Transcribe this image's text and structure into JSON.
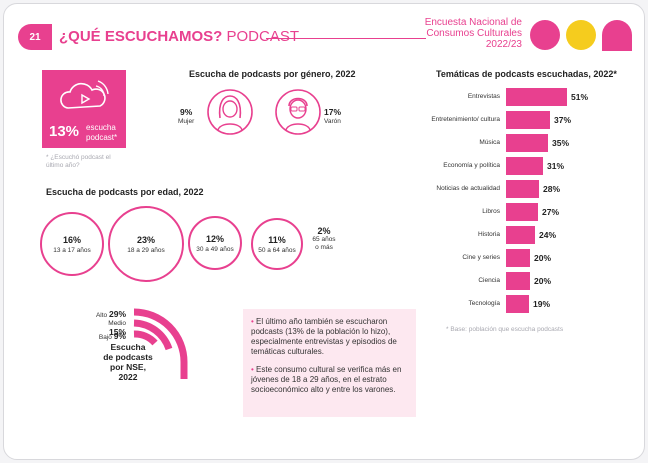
{
  "header": {
    "page_number": "21",
    "title_bold": "¿QUÉ ESCUCHAMOS?",
    "title_light": " PODCAST",
    "survey_lines": [
      "Encuesta Nacional de",
      "Consumos Culturales",
      "2022/23"
    ]
  },
  "colors": {
    "accent": "#e8408f",
    "yellow": "#f5cc1e",
    "panel": "#fde8f0"
  },
  "hero": {
    "value": "13%",
    "label_lines": [
      "escucha",
      "podcast*"
    ],
    "icon": "podcast-audio-icon",
    "note": "* ¿Escuchó podcast el último año?"
  },
  "gender": {
    "title": "Escucha de podcasts por género, 2022",
    "female": {
      "value": "9%",
      "label": "Mujer",
      "icon": "woman-icon"
    },
    "male": {
      "value": "17%",
      "label": "Varón",
      "icon": "man-icon"
    }
  },
  "age": {
    "title": "Escucha de podcasts por edad, 2022",
    "groups": [
      {
        "value": "16%",
        "label": "13 a 17 años"
      },
      {
        "value": "23%",
        "label": "18 a 29 años"
      },
      {
        "value": "12%",
        "label": "30 a 49 años"
      },
      {
        "value": "11%",
        "label": "50 a 64 años"
      },
      {
        "value": "2%",
        "label_lines": [
          "65 años",
          "o más"
        ]
      }
    ]
  },
  "nse": {
    "title_lines": [
      "Escucha",
      "de podcasts",
      "por NSE,",
      "2022"
    ],
    "levels": [
      {
        "label": "Alto",
        "value": "29%"
      },
      {
        "label": "Medio",
        "value": "15%"
      },
      {
        "label": "Bajo",
        "value": "9%"
      }
    ]
  },
  "callout": {
    "items": [
      "El último año también se escucharon podcasts (13% de la población lo hizo), especialmente entrevistas y episodios de temáticas culturales.",
      "Este consumo cultural se verifica más en jóvenes de 18 a 29 años, en el estrato socioeconómico alto y entre los varones."
    ]
  },
  "topics": {
    "title": "Temáticas de podcasts escuchadas, 2022*",
    "note": "* Base: población que escucha podcasts"
  },
  "chart_data": {
    "type": "bar",
    "orientation": "horizontal",
    "title": "Temáticas de podcasts escuchadas, 2022*",
    "categories": [
      "Entrevistas",
      "Entretenimiento/ cultura",
      "Música",
      "Economía y política",
      "Noticias de actualidad",
      "Libros",
      "Historia",
      "Cine y series",
      "Ciencia",
      "Tecnología"
    ],
    "values": [
      51,
      37,
      35,
      31,
      28,
      27,
      24,
      20,
      20,
      19
    ],
    "value_labels": [
      "51%",
      "37%",
      "35%",
      "31%",
      "28%",
      "27%",
      "24%",
      "20%",
      "20%",
      "19%"
    ],
    "xlim": [
      0,
      51
    ],
    "grid": false,
    "legend": "none"
  }
}
